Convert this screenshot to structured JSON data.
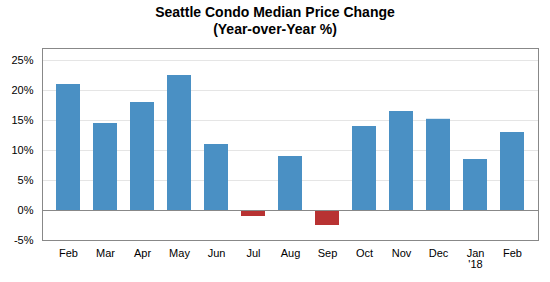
{
  "chart_data": {
    "type": "bar",
    "title": "Seattle Condo Median Price Change",
    "subtitle": "(Year-over-Year %)",
    "categories": [
      "Feb",
      "Mar",
      "Apr",
      "May",
      "Jun",
      "Jul",
      "Aug",
      "Sep",
      "Oct",
      "Nov",
      "Dec",
      "Jan",
      "Feb"
    ],
    "values": [
      21.0,
      14.5,
      18.0,
      22.5,
      11.0,
      -1.0,
      9.0,
      -2.5,
      14.0,
      16.5,
      15.2,
      8.5,
      13.0
    ],
    "colors": [
      "#4A90C4",
      "#4A90C4",
      "#4A90C4",
      "#4A90C4",
      "#4A90C4",
      "#B83232",
      "#4A90C4",
      "#B83232",
      "#4A90C4",
      "#4A90C4",
      "#4A90C4",
      "#4A90C4",
      "#4A90C4"
    ],
    "ylim": [
      -5,
      27
    ],
    "yticks": [
      {
        "value": -5,
        "label": "-5%"
      },
      {
        "value": 0,
        "label": "0%"
      },
      {
        "value": 5,
        "label": "5%"
      },
      {
        "value": 10,
        "label": "10%"
      },
      {
        "value": 15,
        "label": "15%"
      },
      {
        "value": 20,
        "label": "20%"
      },
      {
        "value": 25,
        "label": "25%"
      }
    ],
    "grid": true,
    "annotations": [
      {
        "text": "'18",
        "x": "Jan"
      }
    ]
  }
}
